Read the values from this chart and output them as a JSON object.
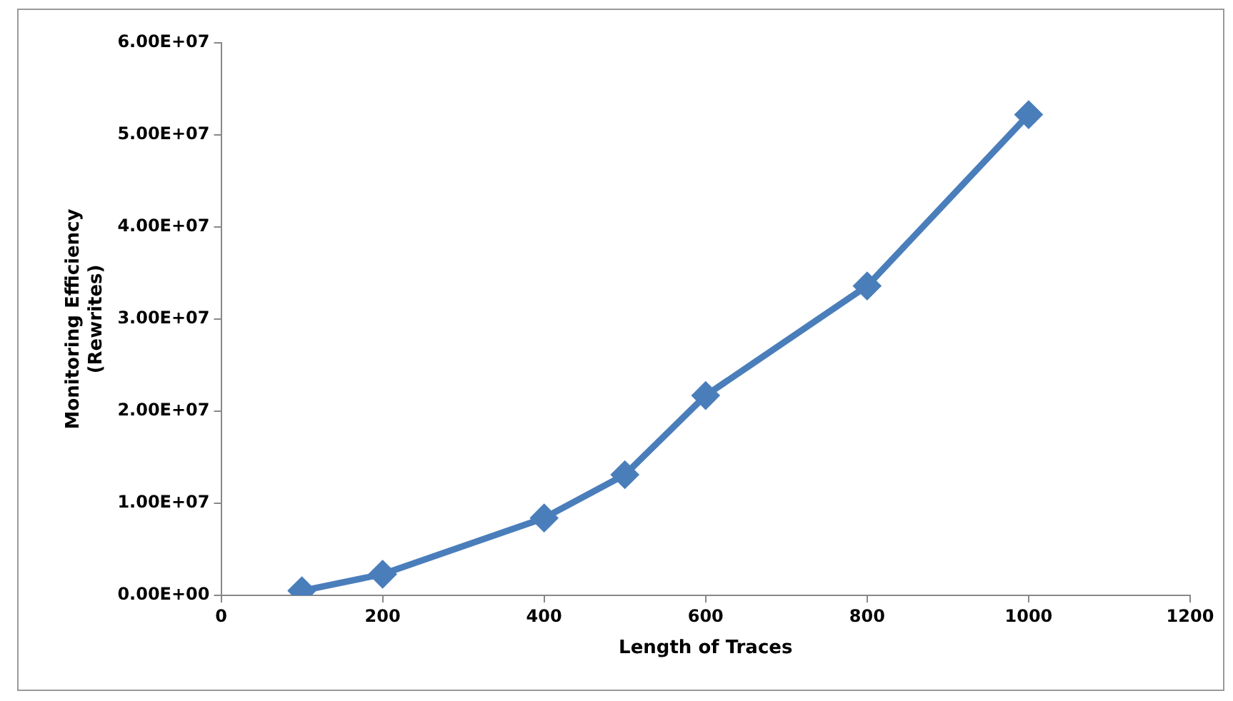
{
  "chart_data": {
    "type": "line",
    "xlabel": "Length of Traces",
    "ylabel": "Monitoring Efficiency\n(Rewrites)",
    "x": [
      100,
      200,
      400,
      500,
      600,
      800,
      1000
    ],
    "series": [
      {
        "color": "#4a7ebb",
        "values": [
          500000,
          2300000,
          8400000,
          13100000,
          21700000,
          33600000,
          52200000
        ]
      }
    ],
    "xlim": [
      0,
      1200
    ],
    "xticks": [
      0,
      200,
      400,
      600,
      800,
      1000,
      1200
    ],
    "ylim": [
      0,
      60000000
    ],
    "yticks": [
      {
        "value": 0,
        "label": "0.00E+00"
      },
      {
        "value": 10000000,
        "label": "1.00E+07"
      },
      {
        "value": 20000000,
        "label": "2.00E+07"
      },
      {
        "value": 30000000,
        "label": "3.00E+07"
      },
      {
        "value": 40000000,
        "label": "4.00E+07"
      },
      {
        "value": 50000000,
        "label": "5.00E+07"
      },
      {
        "value": 60000000,
        "label": "6.00E+07"
      }
    ],
    "grid": false,
    "legend": false,
    "marker": "diamond",
    "line_style": "solid"
  }
}
